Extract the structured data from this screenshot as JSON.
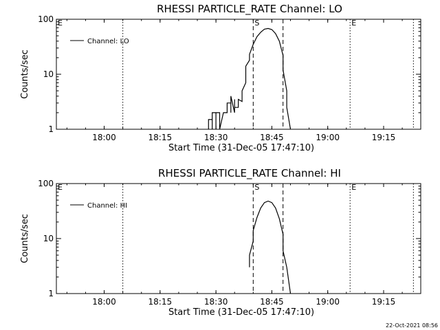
{
  "timestamp": "22-Oct-2021 08:56",
  "chart_data": [
    {
      "type": "line",
      "title": "RHESSI PARTICLE_RATE Channel: LO",
      "xlabel": "Start Time (31-Dec-05 17:47:10)",
      "ylabel": "Counts/sec",
      "yscale": "log",
      "ylim": [
        1,
        100
      ],
      "xlim_minutes_after_start": [
        0,
        97.8
      ],
      "xticks": [
        "18:00",
        "18:15",
        "18:30",
        "18:45",
        "19:00",
        "19:15"
      ],
      "yticks": [
        "1",
        "10",
        "100"
      ],
      "legend": "Channel: LO",
      "legend_position": "top-left",
      "markers": [
        {
          "label": "E",
          "time": "17:47",
          "style": "dotted"
        },
        {
          "label": "",
          "time": "18:05",
          "style": "dotted"
        },
        {
          "label": "S",
          "time": "18:40",
          "style": "dashed"
        },
        {
          "label": "",
          "time": "18:48",
          "style": "dashed"
        },
        {
          "label": "E",
          "time": "19:06",
          "style": "dotted"
        },
        {
          "label": "",
          "time": "19:23",
          "style": "dotted"
        }
      ],
      "series": [
        {
          "name": "Channel: LO",
          "x": [
            "18:28",
            "18:28",
            "18:29",
            "18:29",
            "18:29",
            "18:30",
            "18:30",
            "18:30",
            "18:31",
            "18:31",
            "18:32",
            "18:32",
            "18:33",
            "18:33",
            "18:34",
            "18:34",
            "18:34",
            "18:35",
            "18:35",
            "18:35",
            "18:36",
            "18:36",
            "18:37",
            "18:37",
            "18:37",
            "18:38",
            "18:38",
            "18:38",
            "18:39",
            "18:39",
            "18:40",
            "18:41",
            "18:42",
            "18:43",
            "18:44",
            "18:45",
            "18:46",
            "18:47",
            "18:48",
            "18:48",
            "18:49",
            "18:49",
            "18:50"
          ],
          "y": [
            1,
            1.5,
            1.5,
            1,
            2,
            2,
            1,
            2,
            2,
            1,
            2,
            2,
            2,
            3,
            3,
            2,
            4,
            2,
            3.5,
            2.5,
            2.5,
            3.5,
            3.2,
            4.5,
            5,
            7,
            10,
            14,
            18,
            23,
            35,
            48,
            58,
            66,
            68,
            65,
            55,
            40,
            22,
            12,
            5,
            2.5,
            1
          ]
        }
      ]
    },
    {
      "type": "line",
      "title": "RHESSI PARTICLE_RATE Channel: HI",
      "xlabel": "Start Time (31-Dec-05 17:47:10)",
      "ylabel": "Counts/sec",
      "yscale": "log",
      "ylim": [
        1,
        100
      ],
      "xlim_minutes_after_start": [
        0,
        97.8
      ],
      "xticks": [
        "18:00",
        "18:15",
        "18:30",
        "18:45",
        "19:00",
        "19:15"
      ],
      "yticks": [
        "1",
        "10",
        "100"
      ],
      "legend": "Channel: HI",
      "legend_position": "top-left",
      "markers": [
        {
          "label": "E",
          "time": "17:47",
          "style": "dotted"
        },
        {
          "label": "",
          "time": "18:05",
          "style": "dotted"
        },
        {
          "label": "S",
          "time": "18:40",
          "style": "dashed"
        },
        {
          "label": "",
          "time": "18:48",
          "style": "dashed"
        },
        {
          "label": "E",
          "time": "19:06",
          "style": "dotted"
        },
        {
          "label": "",
          "time": "19:23",
          "style": "dotted"
        }
      ],
      "series": [
        {
          "name": "Channel: HI",
          "x": [
            "18:39",
            "18:39",
            "18:40",
            "18:40",
            "18:41",
            "18:42",
            "18:43",
            "18:44",
            "18:45",
            "18:46",
            "18:47",
            "18:48",
            "18:48",
            "18:49",
            "18:50"
          ],
          "y": [
            3,
            5,
            9,
            14,
            24,
            36,
            45,
            48,
            45,
            36,
            23,
            12,
            6,
            3,
            1
          ]
        }
      ]
    }
  ]
}
